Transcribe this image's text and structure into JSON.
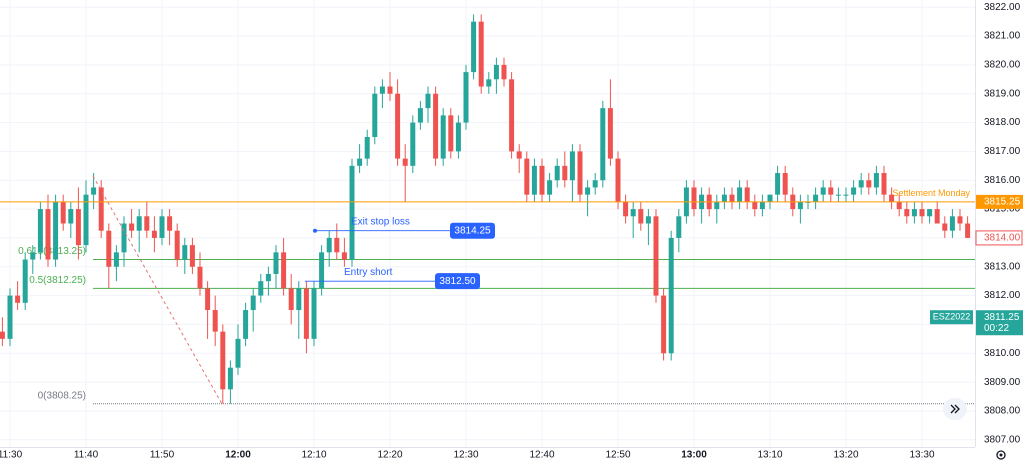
{
  "chart_data": {
    "type": "candlestick",
    "up_color": "#26a69a",
    "down_color": "#ef5350",
    "ylim": [
      3806.75,
      3822.25
    ],
    "yticks": [
      {
        "value": 3807,
        "label": "3807.00"
      },
      {
        "value": 3808,
        "label": "3808.00"
      },
      {
        "value": 3809,
        "label": "3809.00"
      },
      {
        "value": 3810,
        "label": "3810.00"
      },
      {
        "value": 3811,
        "label": "3811.00"
      },
      {
        "value": 3812,
        "label": "3812.00"
      },
      {
        "value": 3813,
        "label": "3813.00"
      },
      {
        "value": 3814,
        "label": "3814.00"
      },
      {
        "value": 3815,
        "label": "3815.00"
      },
      {
        "value": 3816,
        "label": "3816.00"
      },
      {
        "value": 3817,
        "label": "3817.00"
      },
      {
        "value": 3818,
        "label": "3818.00"
      },
      {
        "value": 3819,
        "label": "3819.00"
      },
      {
        "value": 3820,
        "label": "3820.00"
      },
      {
        "value": 3821,
        "label": "3821.00"
      },
      {
        "value": 3822,
        "label": "3822.00"
      }
    ],
    "grid": true,
    "categories": [
      null,
      "11:30",
      null,
      null,
      null,
      null,
      null,
      null,
      null,
      null,
      null,
      "11:40",
      null,
      null,
      null,
      null,
      null,
      null,
      null,
      null,
      null,
      "11:50",
      null,
      null,
      null,
      null,
      null,
      null,
      null,
      null,
      null,
      "12:00",
      null,
      null,
      null,
      null,
      null,
      null,
      null,
      null,
      null,
      "12:10",
      null,
      null,
      null,
      null,
      null,
      null,
      null,
      null,
      null,
      "12:20",
      null,
      null,
      null,
      null,
      null,
      null,
      null,
      null,
      null,
      "12:30",
      null,
      null,
      null,
      null,
      null,
      null,
      null,
      null,
      null,
      "12:40",
      null,
      null,
      null,
      null,
      null,
      null,
      null,
      null,
      null,
      "12:50",
      null,
      null,
      null,
      null,
      null,
      null,
      null,
      null,
      null,
      "13:00",
      null,
      null,
      null,
      null,
      null,
      null,
      null,
      null,
      null,
      "13:10",
      null,
      null,
      null,
      null,
      null,
      null,
      null,
      null,
      null,
      "13:20",
      null,
      null,
      null,
      null,
      null,
      null,
      null,
      null,
      null,
      "13:30",
      null,
      null,
      null,
      null,
      null,
      null
    ],
    "ohlc": [
      [
        3810.75,
        3811.25,
        3810.25,
        3810.5
      ],
      [
        3810.5,
        3812.25,
        3810.25,
        3812
      ],
      [
        3812,
        3812.5,
        3811.5,
        3811.75
      ],
      [
        3811.75,
        3813.5,
        3811.5,
        3813.25
      ],
      [
        3813.25,
        3813.75,
        3812.75,
        3813.5
      ],
      [
        3813.5,
        3815.25,
        3813.25,
        3815
      ],
      [
        3815,
        3815.5,
        3813,
        3813.25
      ],
      [
        3813.25,
        3815.5,
        3813,
        3815.25
      ],
      [
        3815.25,
        3815.5,
        3814.25,
        3814.5
      ],
      [
        3814.5,
        3815.25,
        3814,
        3815
      ],
      [
        3815,
        3815.75,
        3813.25,
        3813.75
      ],
      [
        3813.75,
        3816,
        3813.5,
        3815.5
      ],
      [
        3815.5,
        3816.25,
        3815,
        3815.75
      ],
      [
        3815.75,
        3816,
        3814,
        3814.25
      ],
      [
        3814.25,
        3814.5,
        3812.25,
        3813
      ],
      [
        3813,
        3813.75,
        3812.5,
        3813.5
      ],
      [
        3813.5,
        3814.75,
        3813,
        3814.5
      ],
      [
        3814.5,
        3815,
        3814,
        3814.25
      ],
      [
        3814.25,
        3815,
        3813.5,
        3814.75
      ],
      [
        3814.75,
        3815.25,
        3814,
        3814.25
      ],
      [
        3814.25,
        3814.75,
        3813.5,
        3814
      ],
      [
        3814,
        3815,
        3813.75,
        3814.75
      ],
      [
        3814.75,
        3815,
        3813.75,
        3814.25
      ],
      [
        3814.25,
        3814.5,
        3813,
        3813.25
      ],
      [
        3813.25,
        3814,
        3812.75,
        3813.75
      ],
      [
        3813.75,
        3814,
        3812.75,
        3813
      ],
      [
        3813,
        3813.5,
        3812,
        3812.25
      ],
      [
        3812.25,
        3812.5,
        3810.5,
        3811.5
      ],
      [
        3811.5,
        3812,
        3810.25,
        3810.75
      ],
      [
        3810.75,
        3811,
        3808.25,
        3808.75
      ],
      [
        3808.75,
        3809.75,
        3808.25,
        3809.5
      ],
      [
        3809.5,
        3811,
        3809.25,
        3810.5
      ],
      [
        3810.5,
        3811.75,
        3810.25,
        3811.5
      ],
      [
        3811.5,
        3812.25,
        3810.75,
        3812
      ],
      [
        3812,
        3812.75,
        3811.75,
        3812.5
      ],
      [
        3812.5,
        3813,
        3812,
        3812.75
      ],
      [
        3812.75,
        3813.75,
        3812.25,
        3813.5
      ],
      [
        3813.5,
        3814,
        3812,
        3812.25
      ],
      [
        3812.25,
        3812.75,
        3811,
        3811.5
      ],
      [
        3811.5,
        3812.5,
        3810.5,
        3812.25
      ],
      [
        3812.25,
        3812.5,
        3810,
        3810.5
      ],
      [
        3810.5,
        3812.5,
        3810.25,
        3812.25
      ],
      [
        3812.25,
        3813.75,
        3812,
        3813.5
      ],
      [
        3813.5,
        3814.25,
        3813,
        3814
      ],
      [
        3814,
        3814.5,
        3813.25,
        3813.5
      ],
      [
        3813.5,
        3814,
        3813,
        3813.25
      ],
      [
        3813.25,
        3816.75,
        3813,
        3816.5
      ],
      [
        3816.5,
        3817.25,
        3816.25,
        3816.75
      ],
      [
        3816.75,
        3817.75,
        3816.5,
        3817.5
      ],
      [
        3817.5,
        3819.25,
        3817.25,
        3819
      ],
      [
        3819,
        3819.5,
        3818.5,
        3819.25
      ],
      [
        3819.25,
        3819.75,
        3818.75,
        3819
      ],
      [
        3819,
        3819.5,
        3816.5,
        3816.75
      ],
      [
        3816.75,
        3817.25,
        3815.25,
        3816.5
      ],
      [
        3816.5,
        3818.25,
        3816.25,
        3818
      ],
      [
        3818,
        3818.75,
        3817.75,
        3818.5
      ],
      [
        3818.5,
        3819.25,
        3818,
        3819
      ],
      [
        3819,
        3819.25,
        3816.5,
        3816.75
      ],
      [
        3816.75,
        3818.5,
        3816.5,
        3818.25
      ],
      [
        3818.25,
        3818.5,
        3816.75,
        3817
      ],
      [
        3817,
        3818.25,
        3816.75,
        3818
      ],
      [
        3818,
        3820,
        3817.75,
        3819.75
      ],
      [
        3819.75,
        3821.75,
        3819.5,
        3821.5
      ],
      [
        3821.5,
        3821.75,
        3819,
        3819.25
      ],
      [
        3819.25,
        3819.75,
        3819,
        3819.5
      ],
      [
        3819.5,
        3820.25,
        3819,
        3820
      ],
      [
        3820,
        3820.25,
        3819.25,
        3819.5
      ],
      [
        3819.5,
        3819.75,
        3816.75,
        3817
      ],
      [
        3817,
        3817.25,
        3816.25,
        3816.75
      ],
      [
        3816.75,
        3817,
        3815.25,
        3815.5
      ],
      [
        3815.5,
        3816.75,
        3815.25,
        3816.5
      ],
      [
        3816.5,
        3816.75,
        3815.25,
        3815.5
      ],
      [
        3815.5,
        3816.25,
        3815.25,
        3816
      ],
      [
        3816,
        3816.75,
        3815.75,
        3816.5
      ],
      [
        3816.5,
        3817,
        3815.75,
        3816
      ],
      [
        3816,
        3817.25,
        3815.25,
        3817
      ],
      [
        3817,
        3817.25,
        3815.25,
        3815.5
      ],
      [
        3815.5,
        3816,
        3814.75,
        3815.75
      ],
      [
        3815.75,
        3816.25,
        3815.5,
        3816
      ],
      [
        3816,
        3818.75,
        3815.75,
        3818.5
      ],
      [
        3818.5,
        3819.5,
        3816.5,
        3816.75
      ],
      [
        3816.75,
        3817,
        3815,
        3815.25
      ],
      [
        3815.25,
        3815.5,
        3814.5,
        3814.75
      ],
      [
        3814.75,
        3815.25,
        3814,
        3815
      ],
      [
        3815,
        3815.25,
        3814.25,
        3814.5
      ],
      [
        3814.5,
        3815,
        3813.75,
        3814.75
      ],
      [
        3814.75,
        3815,
        3811.75,
        3812
      ],
      [
        3812,
        3812.25,
        3809.75,
        3810
      ],
      [
        3810,
        3814.25,
        3809.75,
        3814
      ],
      [
        3814,
        3815,
        3813.5,
        3814.75
      ],
      [
        3814.75,
        3816,
        3814.5,
        3815.75
      ],
      [
        3815.75,
        3816,
        3814.75,
        3815
      ],
      [
        3815,
        3815.75,
        3814.5,
        3815.5
      ],
      [
        3815.5,
        3815.75,
        3814.75,
        3815
      ],
      [
        3815,
        3815.5,
        3814.5,
        3815.25
      ],
      [
        3815.25,
        3815.75,
        3815,
        3815.5
      ],
      [
        3815.5,
        3815.75,
        3815,
        3815.25
      ],
      [
        3815.25,
        3816,
        3815,
        3815.75
      ],
      [
        3815.75,
        3816,
        3815,
        3815.25
      ],
      [
        3815.25,
        3815.5,
        3814.75,
        3815
      ],
      [
        3815,
        3815.5,
        3814.75,
        3815.25
      ],
      [
        3815.25,
        3815.5,
        3815,
        3815.5
      ],
      [
        3815.5,
        3816.5,
        3815.25,
        3816.25
      ],
      [
        3816.25,
        3816.5,
        3815.25,
        3815.5
      ],
      [
        3815.5,
        3815.75,
        3814.75,
        3815
      ],
      [
        3815,
        3815.5,
        3814.5,
        3815.25
      ],
      [
        3815.25,
        3815.5,
        3815,
        3815.25
      ],
      [
        3815.25,
        3815.75,
        3815,
        3815.5
      ],
      [
        3815.5,
        3816,
        3815.25,
        3815.75
      ],
      [
        3815.75,
        3816,
        3815.25,
        3815.5
      ],
      [
        3815.5,
        3815.75,
        3815.25,
        3815.5
      ],
      [
        3815.5,
        3815.75,
        3815.25,
        3815.5
      ],
      [
        3815.5,
        3816,
        3815.25,
        3815.75
      ],
      [
        3815.75,
        3816.25,
        3815.5,
        3816
      ],
      [
        3816,
        3816.25,
        3815.5,
        3815.75
      ],
      [
        3815.75,
        3816.5,
        3815.5,
        3816.25
      ],
      [
        3816.25,
        3816.5,
        3815.25,
        3815.5
      ],
      [
        3815.5,
        3815.75,
        3815,
        3815.25
      ],
      [
        3815.25,
        3815.5,
        3814.75,
        3815
      ],
      [
        3815,
        3815.25,
        3814.5,
        3814.75
      ],
      [
        3814.75,
        3815.25,
        3814.5,
        3815
      ],
      [
        3815,
        3815.25,
        3814.5,
        3814.75
      ],
      [
        3814.75,
        3815,
        3814.5,
        3815
      ],
      [
        3815,
        3815.25,
        3814.5,
        3814.5
      ],
      [
        3814.5,
        3814.75,
        3814,
        3814.25
      ],
      [
        3814.25,
        3815,
        3814,
        3814.75
      ],
      [
        3814.75,
        3815,
        3814.25,
        3814.5
      ],
      [
        3814.5,
        3814.75,
        3814,
        3814
      ]
    ],
    "price_line": {
      "name": "Settlement Monday",
      "value": 3815.25,
      "color": "#ff9800"
    },
    "fib_levels": [
      {
        "label": "0.618(3813.25)",
        "value": 3813.25,
        "color": "#4caf50"
      },
      {
        "label": "0.5(3812.25)",
        "value": 3812.25,
        "color": "#4caf50"
      },
      {
        "label": "0(3808.25)",
        "value": 3808.25,
        "color": "#787b86"
      }
    ],
    "orders": [
      {
        "name": "Exit stop loss",
        "value": {
          "value": 3814.25,
          "label": "3814.25"
        }
      },
      {
        "name": "Entry short",
        "value": {
          "value": 3812.5,
          "label": "3812.50"
        }
      }
    ],
    "last_close_marker": {
      "value": 3814,
      "label": "3814.00"
    },
    "symbol_marker": {
      "symbol": "ESZ2022",
      "value": 3811.25,
      "countdown": "00:22"
    }
  }
}
